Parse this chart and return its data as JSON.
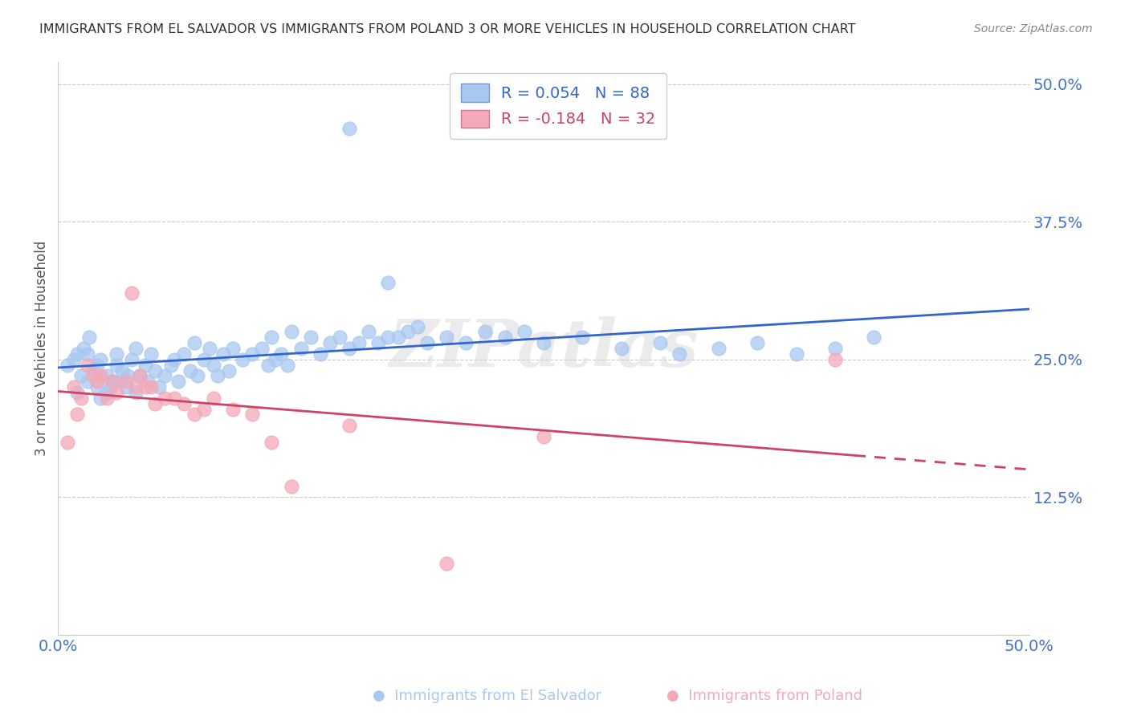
{
  "title": "IMMIGRANTS FROM EL SALVADOR VS IMMIGRANTS FROM POLAND 3 OR MORE VEHICLES IN HOUSEHOLD CORRELATION CHART",
  "source": "Source: ZipAtlas.com",
  "ylabel": "3 or more Vehicles in Household",
  "xlim": [
    0.0,
    0.5
  ],
  "ylim": [
    0.0,
    0.52
  ],
  "yticks": [
    0.125,
    0.25,
    0.375,
    0.5
  ],
  "ytick_labels": [
    "12.5%",
    "25.0%",
    "37.5%",
    "50.0%"
  ],
  "xtick_labels": [
    "0.0%",
    "50.0%"
  ],
  "xtick_positions": [
    0.0,
    0.5
  ],
  "blue_R": 0.054,
  "blue_N": 88,
  "pink_R": -0.184,
  "pink_N": 32,
  "blue_color": "#A8C8F0",
  "pink_color": "#F4A8B8",
  "line_blue": "#3366CC",
  "line_pink": "#CC4466",
  "watermark": "ZIPatlas",
  "blue_x": [
    0.005,
    0.008,
    0.01,
    0.01,
    0.012,
    0.013,
    0.015,
    0.015,
    0.016,
    0.018,
    0.02,
    0.02,
    0.022,
    0.022,
    0.025,
    0.025,
    0.027,
    0.028,
    0.03,
    0.03,
    0.032,
    0.033,
    0.035,
    0.036,
    0.038,
    0.04,
    0.04,
    0.042,
    0.045,
    0.046,
    0.048,
    0.05,
    0.052,
    0.055,
    0.058,
    0.06,
    0.062,
    0.065,
    0.068,
    0.07,
    0.072,
    0.075,
    0.078,
    0.08,
    0.082,
    0.085,
    0.088,
    0.09,
    0.095,
    0.1,
    0.105,
    0.108,
    0.11,
    0.112,
    0.115,
    0.118,
    0.12,
    0.125,
    0.13,
    0.135,
    0.14,
    0.145,
    0.15,
    0.155,
    0.16,
    0.165,
    0.17,
    0.175,
    0.18,
    0.185,
    0.19,
    0.2,
    0.21,
    0.22,
    0.23,
    0.24,
    0.25,
    0.27,
    0.29,
    0.31,
    0.32,
    0.34,
    0.36,
    0.38,
    0.4,
    0.42,
    0.15,
    0.17
  ],
  "blue_y": [
    0.245,
    0.25,
    0.22,
    0.255,
    0.235,
    0.26,
    0.23,
    0.255,
    0.27,
    0.24,
    0.225,
    0.245,
    0.215,
    0.25,
    0.22,
    0.235,
    0.225,
    0.23,
    0.245,
    0.255,
    0.23,
    0.24,
    0.225,
    0.235,
    0.25,
    0.22,
    0.26,
    0.235,
    0.245,
    0.23,
    0.255,
    0.24,
    0.225,
    0.235,
    0.245,
    0.25,
    0.23,
    0.255,
    0.24,
    0.265,
    0.235,
    0.25,
    0.26,
    0.245,
    0.235,
    0.255,
    0.24,
    0.26,
    0.25,
    0.255,
    0.26,
    0.245,
    0.27,
    0.25,
    0.255,
    0.245,
    0.275,
    0.26,
    0.27,
    0.255,
    0.265,
    0.27,
    0.26,
    0.265,
    0.275,
    0.265,
    0.27,
    0.27,
    0.275,
    0.28,
    0.265,
    0.27,
    0.265,
    0.275,
    0.27,
    0.275,
    0.265,
    0.27,
    0.26,
    0.265,
    0.255,
    0.26,
    0.265,
    0.255,
    0.26,
    0.27,
    0.46,
    0.32
  ],
  "pink_x": [
    0.005,
    0.008,
    0.01,
    0.012,
    0.015,
    0.018,
    0.02,
    0.022,
    0.025,
    0.028,
    0.03,
    0.035,
    0.038,
    0.04,
    0.042,
    0.045,
    0.048,
    0.05,
    0.055,
    0.06,
    0.065,
    0.07,
    0.075,
    0.08,
    0.09,
    0.1,
    0.11,
    0.12,
    0.15,
    0.2,
    0.25,
    0.4
  ],
  "pink_y": [
    0.175,
    0.225,
    0.2,
    0.215,
    0.245,
    0.235,
    0.23,
    0.235,
    0.215,
    0.23,
    0.22,
    0.23,
    0.31,
    0.225,
    0.235,
    0.225,
    0.225,
    0.21,
    0.215,
    0.215,
    0.21,
    0.2,
    0.205,
    0.215,
    0.205,
    0.2,
    0.175,
    0.135,
    0.19,
    0.065,
    0.18,
    0.25
  ]
}
